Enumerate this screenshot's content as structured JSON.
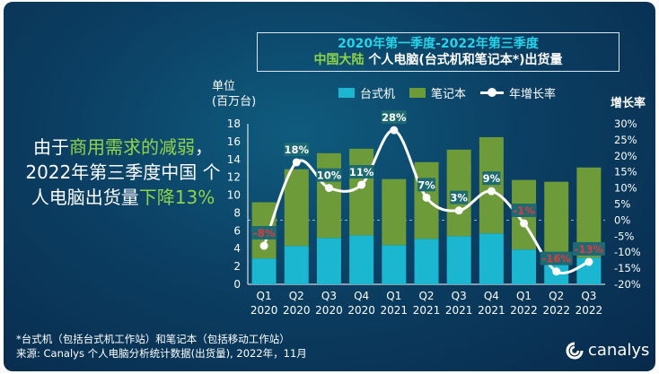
{
  "title": {
    "line1": "2020年第一季度-2022年第三季度",
    "line2_highlight": "中国大陆",
    "line2_rest": " 个人电脑(台式机和笔记本*)出货量"
  },
  "unit_label": [
    "单位",
    "(百万台)"
  ],
  "growth_axis_label": "增长率",
  "legend": {
    "desktop": "台式机",
    "notebook": "笔记本",
    "growth": "年增长率"
  },
  "headline": {
    "p1": "由于",
    "h1": "商用需求的减弱",
    "p2": "，2022年第三季度中国 个人电脑出货量",
    "h2": "下降13%"
  },
  "footnote": [
    "*台式机（包括台式机工作站）和笔记本（包括移动工作站）",
    "来源: Canalys 个人电脑分析统计数据(出货量), 2022年，11月"
  ],
  "logo_text": "canalys",
  "colors": {
    "desktop": "#1bb6d0",
    "notebook": "#6e9b3a",
    "line": "#ffffff",
    "pos_label": "#ffffff",
    "neg_label": "#e0393e",
    "label_bg": "#1e6a72"
  },
  "chart_data": {
    "type": "bar",
    "stacked": true,
    "categories": [
      "Q1 2020",
      "Q2 2020",
      "Q3 2020",
      "Q4 2020",
      "Q1 2021",
      "Q2 2021",
      "Q3 2021",
      "Q4 2021",
      "Q1 2022",
      "Q2 2022",
      "Q3 2022"
    ],
    "x_tick_top": [
      "Q1",
      "Q2",
      "Q3",
      "Q4",
      "Q1",
      "Q2",
      "Q3",
      "Q4",
      "Q1",
      "Q2",
      "Q3"
    ],
    "x_tick_bottom": [
      "2020",
      "2020",
      "2020",
      "2020",
      "2021",
      "2021",
      "2021",
      "2021",
      "2022",
      "2022",
      "2022"
    ],
    "series": [
      {
        "name": "台式机",
        "values": [
          2.9,
          4.3,
          5.2,
          5.5,
          4.4,
          5.1,
          5.4,
          5.7,
          3.9,
          3.0,
          3.0
        ]
      },
      {
        "name": "笔记本",
        "values": [
          6.3,
          8.6,
          9.5,
          9.7,
          7.4,
          8.6,
          9.7,
          10.8,
          7.8,
          8.5,
          10.1
        ]
      },
      {
        "name": "年增长率",
        "axis": "right",
        "type": "line",
        "values": [
          -8,
          18,
          10,
          11,
          28,
          7,
          3,
          9,
          -1,
          -16,
          -13
        ],
        "labels": [
          "-8%",
          "18%",
          "10%",
          "11%",
          "28%",
          "7%",
          "3%",
          "9%",
          "-1%",
          "-16%",
          "-13%"
        ]
      }
    ],
    "ylim": [
      0,
      18
    ],
    "yticks": [
      "0",
      "2",
      "4",
      "6",
      "8",
      "10",
      "12",
      "14",
      "16",
      "18"
    ],
    "y2lim": [
      -20,
      30
    ],
    "y2ticks": [
      "-20%",
      "-15%",
      "-10%",
      "-5%",
      "0%",
      "5%",
      "10%",
      "15%",
      "20%",
      "25%",
      "30%"
    ],
    "grid": false,
    "legend_position": "top"
  }
}
